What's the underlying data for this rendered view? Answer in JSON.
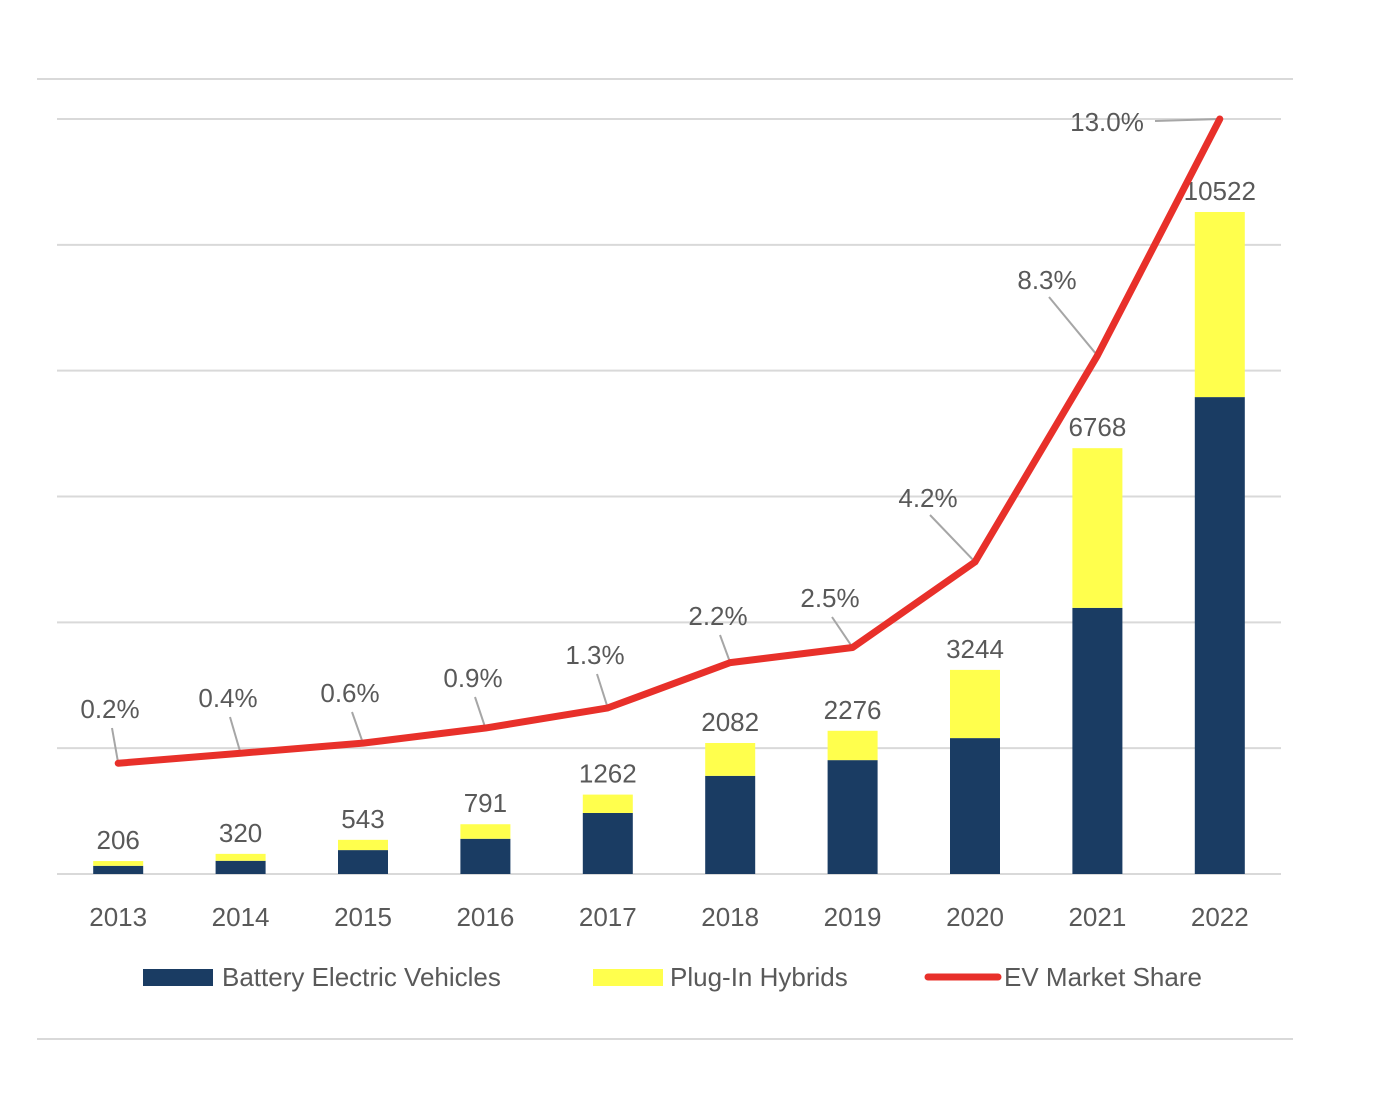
{
  "chart_data": {
    "type": "bar",
    "stacked": true,
    "categories": [
      "2013",
      "2014",
      "2015",
      "2016",
      "2017",
      "2018",
      "2019",
      "2020",
      "2021",
      "2022"
    ],
    "series": [
      {
        "name": "Battery Electric Vehicles",
        "type": "bar",
        "color": "#1a3c63",
        "values": [
          130,
          210,
          380,
          560,
          970,
          1560,
          1810,
          2160,
          4230,
          7580
        ]
      },
      {
        "name": "Plug-In Hybrids",
        "type": "bar",
        "color": "#ffff4d",
        "values": [
          76,
          110,
          163,
          231,
          292,
          522,
          466,
          1084,
          2538,
          2942
        ]
      },
      {
        "name": "EV Market Share",
        "type": "line",
        "axis": "secondary",
        "color": "#e8302a",
        "values": [
          0.2,
          0.4,
          0.6,
          0.9,
          1.3,
          2.2,
          2.5,
          4.2,
          8.3,
          13.0
        ]
      }
    ],
    "totals": [
      206,
      320,
      543,
      791,
      1262,
      2082,
      2276,
      3244,
      6768,
      10522
    ],
    "total_labels": [
      "206",
      "320",
      "543",
      "791",
      "1262",
      "2082",
      "2276",
      "3244",
      "6768",
      "10522"
    ],
    "share_labels": [
      "0.2%",
      "0.4%",
      "0.6%",
      "0.9%",
      "1.3%",
      "2.2%",
      "2.5%",
      "4.2%",
      "8.3%",
      "13.0%"
    ],
    "ylim": [
      0,
      12000
    ],
    "y_gridline_step": 2000,
    "y2lim": [
      -2,
      13
    ],
    "y_tick_labels_shown": false,
    "grid": true,
    "legend_position": "bottom",
    "title": "",
    "xlabel": "",
    "ylabel": ""
  }
}
